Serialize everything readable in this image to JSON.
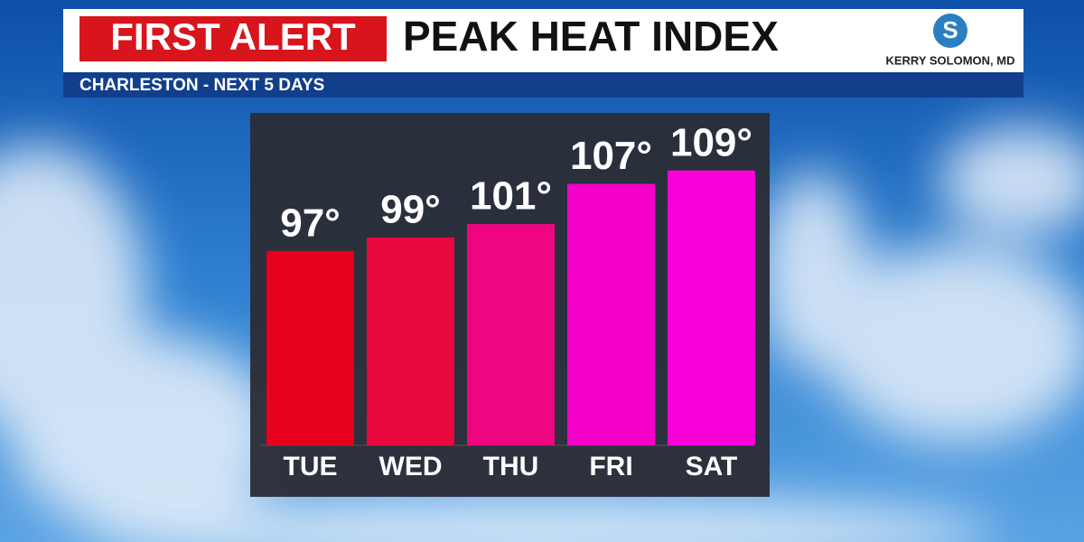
{
  "chart_data": {
    "type": "bar",
    "badge": "FIRST ALERT",
    "title": "PEAK HEAT INDEX",
    "subtitle": "CHARLESTON - NEXT 5 DAYS",
    "credit": "KERRY SOLOMON, MD",
    "categories": [
      "TUE",
      "WED",
      "THU",
      "FRI",
      "SAT"
    ],
    "values": [
      97,
      99,
      101,
      107,
      109
    ],
    "value_labels": [
      "97°",
      "99°",
      "101°",
      "107°",
      "109°"
    ],
    "colors": [
      "#e6001e",
      "#e8083e",
      "#ee0580",
      "#f500c8",
      "#f900da"
    ],
    "ylim": [
      68,
      113
    ]
  }
}
